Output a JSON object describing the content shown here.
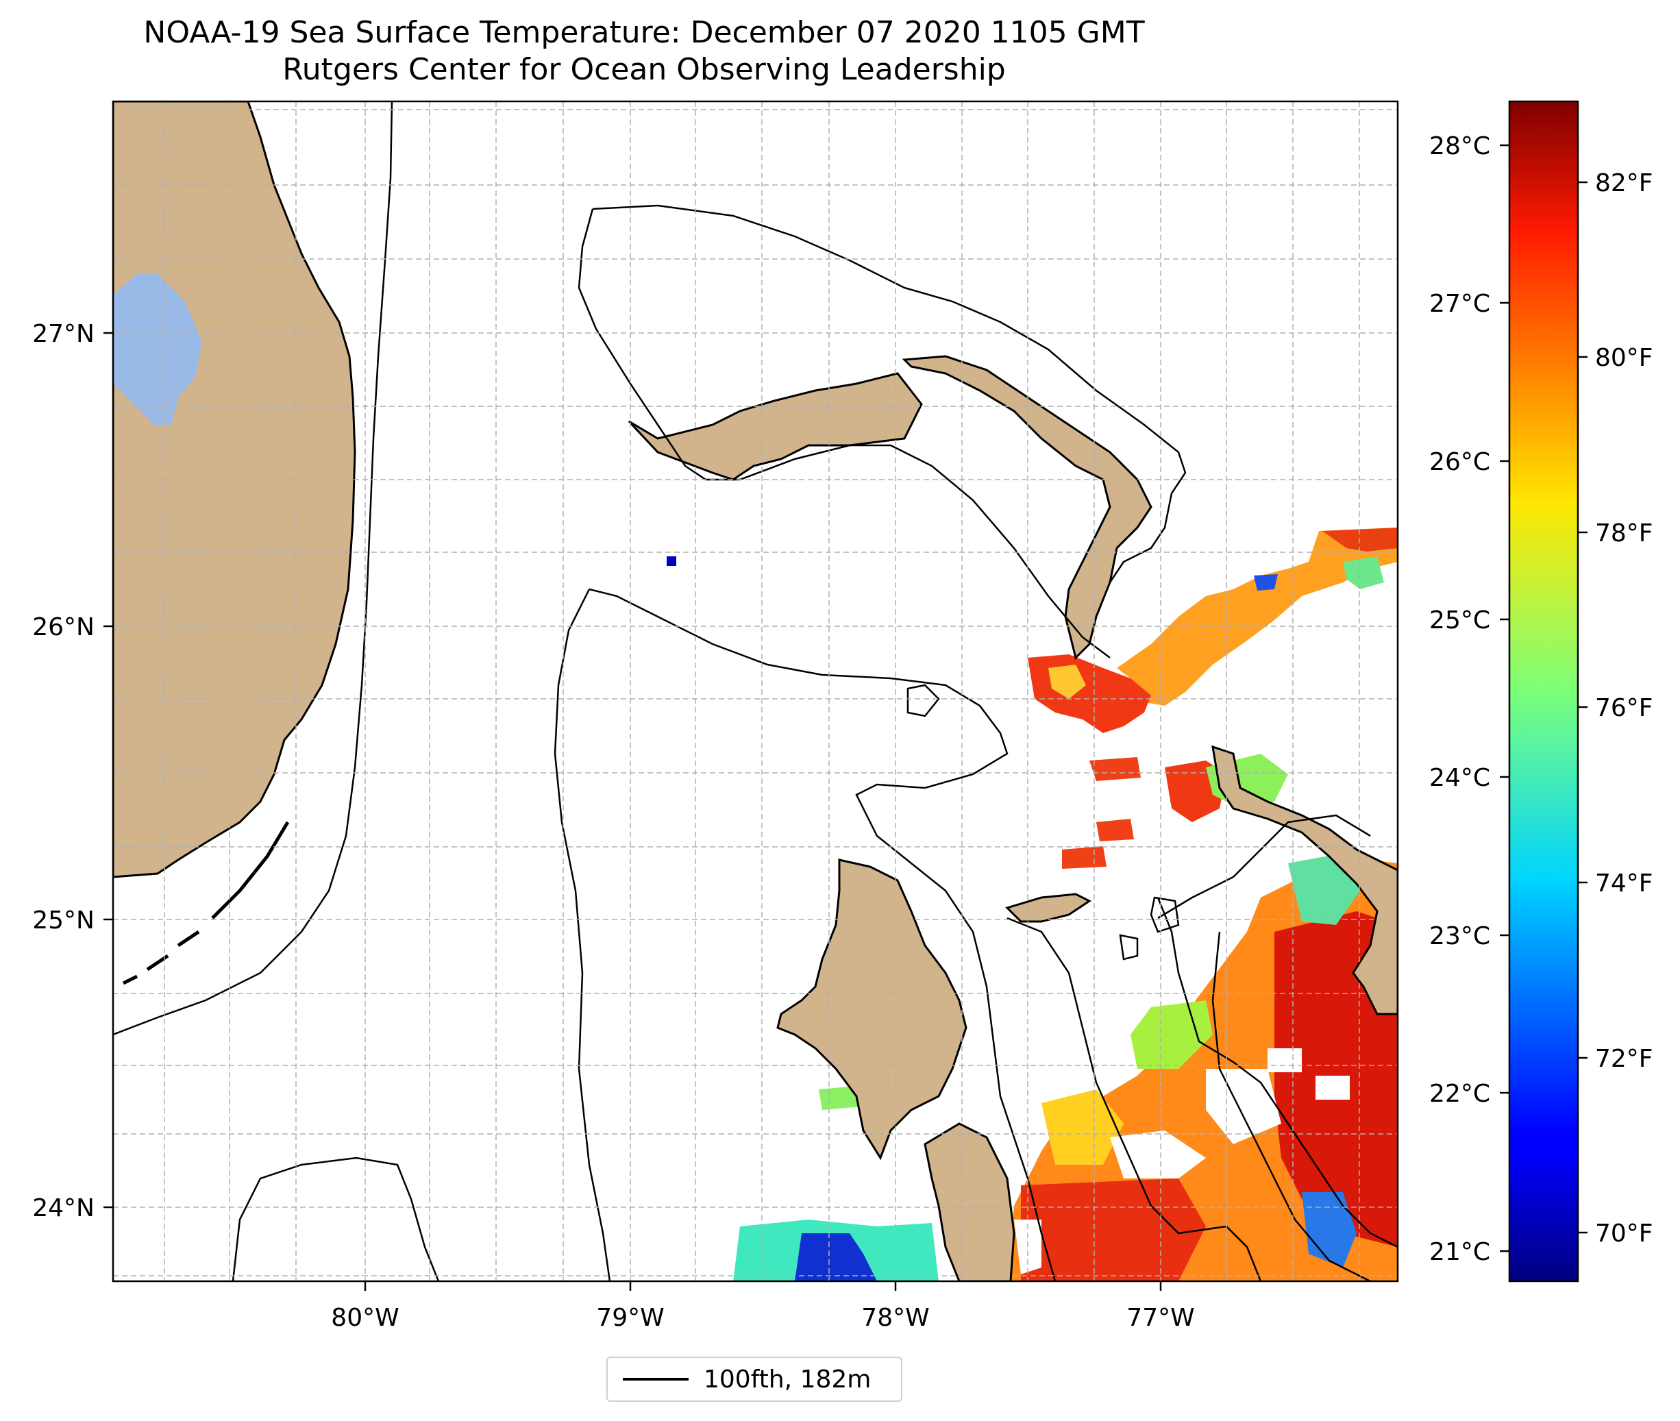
{
  "title": "NOAA-19 Sea Surface Temperature: December 07 2020 1105 GMT",
  "subtitle": "Rutgers Center for Ocean Observing Leadership",
  "map": {
    "lon_labels": [
      "80°W",
      "79°W",
      "78°W",
      "77°W"
    ],
    "lat_labels": [
      "27°N",
      "26°N",
      "25°N",
      "24°N"
    ],
    "lon_range": [
      -80.95,
      -76.1
    ],
    "lat_range": [
      23.75,
      27.8
    ],
    "gridlines": "dashed",
    "colors": {
      "land": "#d2b48c",
      "lake": "#99b9e6",
      "isobath": "#000000"
    }
  },
  "colorbar": {
    "colormap": "jet",
    "celsius_labels": [
      "28°C",
      "27°C",
      "26°C",
      "25°C",
      "24°C",
      "23°C",
      "22°C",
      "21°C"
    ],
    "fahrenheit_labels": [
      "82°F",
      "80°F",
      "78°F",
      "76°F",
      "74°F",
      "72°F",
      "70°F"
    ],
    "range_f": [
      69.5,
      83
    ]
  },
  "legend": {
    "label": "100fth, 182m"
  }
}
